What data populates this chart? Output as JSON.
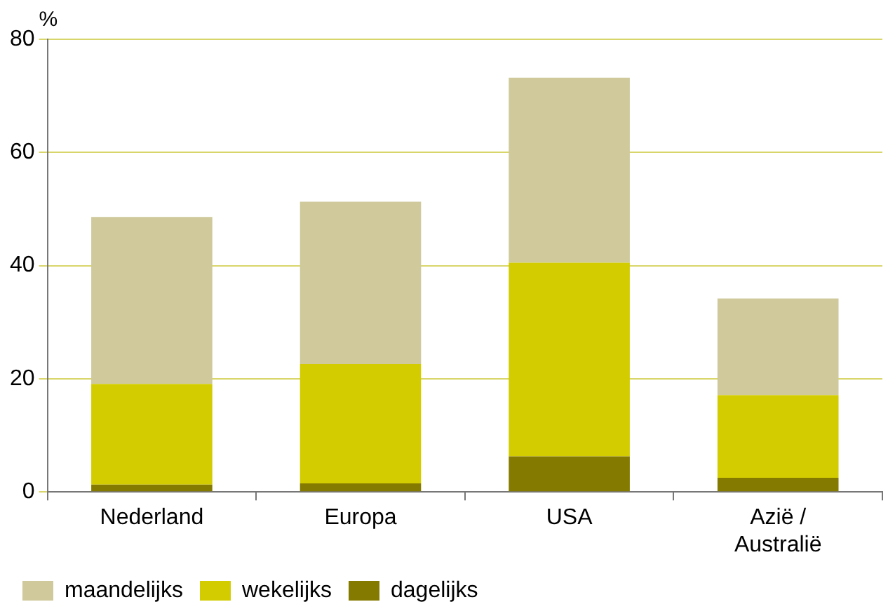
{
  "chart_data": {
    "type": "bar",
    "stacked": true,
    "ylabel": "%",
    "categories": [
      "Nederland",
      "Europa",
      "USA",
      "Azië / Australië"
    ],
    "series": [
      {
        "name": "dagelijks",
        "color": "#857a00",
        "values": [
          1.3,
          1.5,
          6.3,
          2.5
        ]
      },
      {
        "name": "wekelijks",
        "color": "#d2cc00",
        "values": [
          17.8,
          21.1,
          34.2,
          14.6
        ]
      },
      {
        "name": "maandelijks",
        "color": "#cfc99b",
        "values": [
          29.5,
          28.7,
          32.7,
          17.1
        ]
      }
    ],
    "ylim": [
      0,
      80
    ],
    "yticks": [
      0,
      20,
      40,
      60,
      80
    ],
    "grid": "y",
    "legend": "bottom"
  }
}
